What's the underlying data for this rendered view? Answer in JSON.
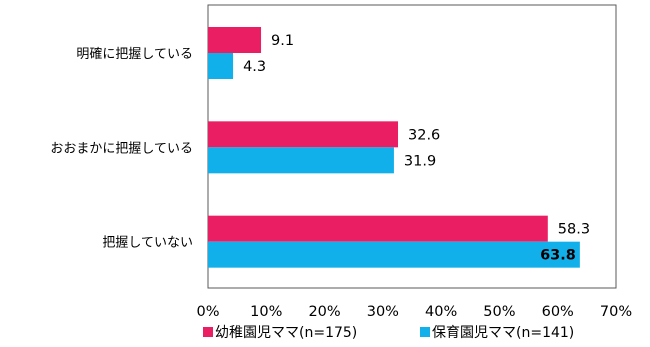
{
  "chart_data": {
    "type": "bar",
    "orientation": "horizontal",
    "categories": [
      "明確に把握している",
      "おおまかに把握している",
      "把握していない"
    ],
    "series": [
      {
        "name": "幼稚園児ママ(n=175)",
        "values": [
          9.1,
          32.6,
          58.3
        ],
        "value_labels": [
          "9.1",
          "32.6",
          "58.3"
        ],
        "color": "#ea1e63"
      },
      {
        "name": "保育園児ママ(n=141)",
        "values": [
          4.3,
          31.9,
          63.8
        ],
        "value_labels": [
          "4.3",
          "31.9",
          "63.8"
        ],
        "color": "#12b0ea"
      }
    ],
    "bold_labels": [
      {
        "series": 1,
        "index": 2
      }
    ],
    "xlim": [
      0,
      70
    ],
    "xticks": [
      "0%",
      "10%",
      "20%",
      "30%",
      "40%",
      "50%",
      "60%",
      "70%"
    ],
    "title": "",
    "xlabel": "",
    "ylabel": "",
    "grid": false,
    "legend_position": "bottom"
  }
}
